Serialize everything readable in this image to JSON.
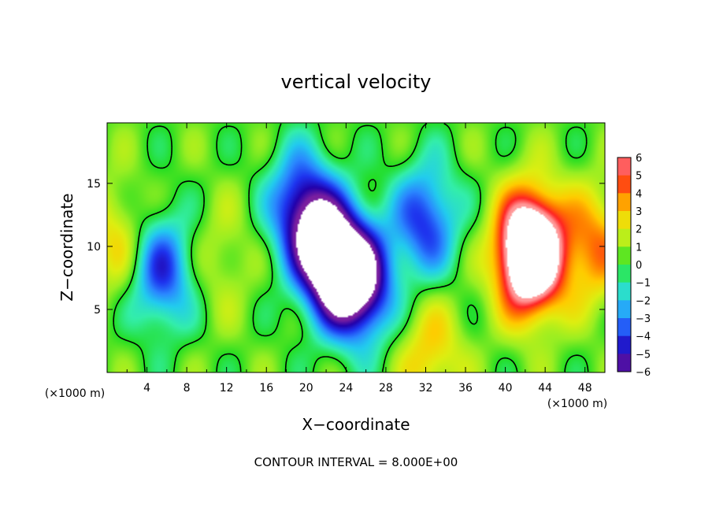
{
  "chart_data": {
    "type": "heatmap",
    "title": "vertical velocity",
    "xlabel": "X−coordinate",
    "ylabel": "Z−coordinate",
    "x_unit": "(×1000 m)",
    "z_unit": "(×1000 m)",
    "xlim": [
      0,
      50
    ],
    "ylim": [
      0,
      19.8
    ],
    "x_ticks": [
      "4",
      "8",
      "12",
      "16",
      "20",
      "24",
      "28",
      "32",
      "36",
      "40",
      "44",
      "48"
    ],
    "y_ticks": [
      "5",
      "10",
      "15"
    ],
    "colorbar": {
      "min": -6,
      "max": 6,
      "ticks": [
        "6",
        "5",
        "4",
        "3",
        "2",
        "1",
        "0",
        "−1",
        "−2",
        "−3",
        "−4",
        "−5",
        "−6"
      ]
    },
    "features": [
      {
        "x": 1.0,
        "z": 10.5,
        "w": 2.2
      },
      {
        "x": 5.5,
        "z": 8.0,
        "w": -4.5
      },
      {
        "x": 11.5,
        "z": 9.0,
        "w": 1.2
      },
      {
        "x": 19.5,
        "z": 13.0,
        "w": -5.5
      },
      {
        "x": 22.5,
        "z": 9.0,
        "w": -9.0
      },
      {
        "x": 25.5,
        "z": 7.0,
        "w": -7.0
      },
      {
        "x": 32.0,
        "z": 12.0,
        "w": -4.5
      },
      {
        "x": 32.5,
        "z": 1.5,
        "w": 2.5
      },
      {
        "x": 42.5,
        "z": 9.5,
        "w": 12.0
      },
      {
        "x": 49.0,
        "z": 10.0,
        "w": 3.5
      }
    ],
    "footer": "CONTOUR INTERVAL = 8.000E+00"
  }
}
